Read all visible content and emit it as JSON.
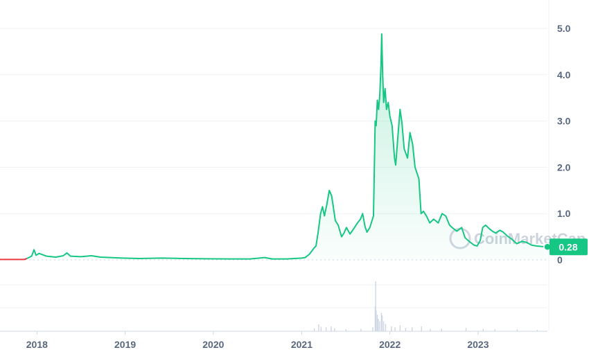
{
  "chart_data": {
    "type": "area",
    "title": "",
    "xlabel": "",
    "ylabel": "",
    "x_start": "2017-08-01",
    "x_end": "2023-10-15",
    "ylim": [
      0,
      5.5
    ],
    "y_ticks": [
      0,
      1.0,
      2.0,
      3.0,
      4.0,
      5.0
    ],
    "y_tick_labels": [
      "0",
      "1.0",
      "2.0",
      "3.0",
      "4.0",
      "5.0"
    ],
    "x_ticks": [
      "2018-01-01",
      "2019-01-01",
      "2020-01-01",
      "2021-01-01",
      "2022-01-01",
      "2023-01-01"
    ],
    "x_tick_labels": [
      "2018",
      "2019",
      "2020",
      "2021",
      "2022",
      "2023"
    ],
    "baseline_value": 0.0,
    "current_price": 0.28,
    "current_price_label": "0.28",
    "watermark": "CoinMarketCap",
    "colors": {
      "line_up": "#16c784",
      "line_down": "#ea3943",
      "area_fill": "#16c784",
      "price_label_bg": "#16c784",
      "grid": "#eff2f5",
      "volume": "#cfd6e4",
      "axis_text": "#58667e"
    },
    "series": [
      {
        "points": [
          [
            "2017-08-01",
            0.01
          ],
          [
            "2017-10-01",
            0.01
          ],
          [
            "2017-11-10",
            0.01
          ],
          [
            "2017-11-20",
            0.03
          ],
          [
            "2017-12-10",
            0.08
          ],
          [
            "2017-12-20",
            0.22
          ],
          [
            "2017-12-28",
            0.1
          ],
          [
            "2018-01-10",
            0.14
          ],
          [
            "2018-02-10",
            0.08
          ],
          [
            "2018-03-20",
            0.06
          ],
          [
            "2018-04-20",
            0.09
          ],
          [
            "2018-05-05",
            0.15
          ],
          [
            "2018-05-20",
            0.08
          ],
          [
            "2018-07-01",
            0.07
          ],
          [
            "2018-08-15",
            0.09
          ],
          [
            "2018-09-20",
            0.06
          ],
          [
            "2018-11-01",
            0.05
          ],
          [
            "2018-12-20",
            0.04
          ],
          [
            "2019-03-01",
            0.03
          ],
          [
            "2019-06-01",
            0.04
          ],
          [
            "2019-09-01",
            0.03
          ],
          [
            "2019-12-01",
            0.025
          ],
          [
            "2020-03-15",
            0.02
          ],
          [
            "2020-06-01",
            0.02
          ],
          [
            "2020-08-01",
            0.05
          ],
          [
            "2020-09-01",
            0.02
          ],
          [
            "2020-11-01",
            0.02
          ],
          [
            "2021-01-01",
            0.04
          ],
          [
            "2021-01-15",
            0.05
          ],
          [
            "2021-02-01",
            0.12
          ],
          [
            "2021-02-10",
            0.18
          ],
          [
            "2021-02-20",
            0.25
          ],
          [
            "2021-03-01",
            0.3
          ],
          [
            "2021-03-10",
            0.6
          ],
          [
            "2021-03-20",
            1.0
          ],
          [
            "2021-03-28",
            1.15
          ],
          [
            "2021-04-05",
            0.95
          ],
          [
            "2021-04-15",
            1.2
          ],
          [
            "2021-04-25",
            1.5
          ],
          [
            "2021-05-05",
            1.38
          ],
          [
            "2021-05-20",
            0.85
          ],
          [
            "2021-06-01",
            0.75
          ],
          [
            "2021-06-15",
            0.5
          ],
          [
            "2021-06-25",
            0.58
          ],
          [
            "2021-07-05",
            0.7
          ],
          [
            "2021-07-20",
            0.56
          ],
          [
            "2021-08-05",
            0.68
          ],
          [
            "2021-08-20",
            0.8
          ],
          [
            "2021-09-01",
            0.88
          ],
          [
            "2021-09-10",
            1.0
          ],
          [
            "2021-09-20",
            0.72
          ],
          [
            "2021-09-28",
            0.6
          ],
          [
            "2021-10-10",
            0.7
          ],
          [
            "2021-10-25",
            0.95
          ],
          [
            "2021-11-01",
            3.0
          ],
          [
            "2021-11-05",
            2.9
          ],
          [
            "2021-11-10",
            3.45
          ],
          [
            "2021-11-15",
            3.25
          ],
          [
            "2021-11-20",
            3.55
          ],
          [
            "2021-11-25",
            4.2
          ],
          [
            "2021-11-28",
            4.88
          ],
          [
            "2021-12-02",
            4.0
          ],
          [
            "2021-12-06",
            3.4
          ],
          [
            "2021-12-12",
            3.7
          ],
          [
            "2021-12-18",
            3.25
          ],
          [
            "2021-12-25",
            3.4
          ],
          [
            "2022-01-01",
            3.1
          ],
          [
            "2022-01-10",
            2.9
          ],
          [
            "2022-01-20",
            2.2
          ],
          [
            "2022-01-25",
            2.05
          ],
          [
            "2022-02-05",
            2.8
          ],
          [
            "2022-02-12",
            3.25
          ],
          [
            "2022-02-20",
            2.95
          ],
          [
            "2022-03-01",
            2.4
          ],
          [
            "2022-03-15",
            2.2
          ],
          [
            "2022-03-25",
            2.75
          ],
          [
            "2022-04-05",
            2.5
          ],
          [
            "2022-04-15",
            2.0
          ],
          [
            "2022-05-01",
            1.75
          ],
          [
            "2022-05-10",
            1.0
          ],
          [
            "2022-05-20",
            1.05
          ],
          [
            "2022-06-01",
            0.95
          ],
          [
            "2022-06-15",
            0.8
          ],
          [
            "2022-07-01",
            0.88
          ],
          [
            "2022-07-20",
            0.8
          ],
          [
            "2022-08-05",
            1.0
          ],
          [
            "2022-08-20",
            0.95
          ],
          [
            "2022-09-05",
            0.75
          ],
          [
            "2022-09-20",
            0.68
          ],
          [
            "2022-10-05",
            0.62
          ],
          [
            "2022-10-25",
            0.7
          ],
          [
            "2022-11-08",
            0.48
          ],
          [
            "2022-11-25",
            0.4
          ],
          [
            "2022-12-15",
            0.32
          ],
          [
            "2022-12-28",
            0.3
          ],
          [
            "2023-01-10",
            0.42
          ],
          [
            "2023-01-20",
            0.7
          ],
          [
            "2023-02-01",
            0.75
          ],
          [
            "2023-02-15",
            0.68
          ],
          [
            "2023-03-01",
            0.62
          ],
          [
            "2023-03-15",
            0.58
          ],
          [
            "2023-04-01",
            0.64
          ],
          [
            "2023-04-15",
            0.6
          ],
          [
            "2023-05-01",
            0.52
          ],
          [
            "2023-05-20",
            0.45
          ],
          [
            "2023-06-10",
            0.35
          ],
          [
            "2023-07-01",
            0.4
          ],
          [
            "2023-07-20",
            0.38
          ],
          [
            "2023-08-10",
            0.32
          ],
          [
            "2023-09-01",
            0.3
          ],
          [
            "2023-09-20",
            0.29
          ],
          [
            "2023-10-15",
            0.28
          ]
        ]
      }
    ],
    "volume": [
      [
        "2021-02-20",
        0.06
      ],
      [
        "2021-03-10",
        0.14
      ],
      [
        "2021-03-20",
        0.09
      ],
      [
        "2021-04-10",
        0.08
      ],
      [
        "2021-05-01",
        0.1
      ],
      [
        "2021-05-15",
        0.06
      ],
      [
        "2021-07-01",
        0.04
      ],
      [
        "2021-09-01",
        0.05
      ],
      [
        "2021-10-20",
        0.08
      ],
      [
        "2021-10-30",
        0.5
      ],
      [
        "2021-11-01",
        1.0
      ],
      [
        "2021-11-03",
        0.42
      ],
      [
        "2021-11-08",
        0.33
      ],
      [
        "2021-11-12",
        0.25
      ],
      [
        "2021-11-18",
        0.2
      ],
      [
        "2021-11-25",
        0.37
      ],
      [
        "2021-11-28",
        0.32
      ],
      [
        "2021-12-04",
        0.2
      ],
      [
        "2021-12-12",
        0.15
      ],
      [
        "2022-01-05",
        0.1
      ],
      [
        "2022-01-20",
        0.08
      ],
      [
        "2022-02-10",
        0.12
      ],
      [
        "2022-03-05",
        0.07
      ],
      [
        "2022-04-01",
        0.08
      ],
      [
        "2022-05-10",
        0.1
      ],
      [
        "2022-06-15",
        0.05
      ],
      [
        "2022-08-01",
        0.05
      ],
      [
        "2022-11-10",
        0.07
      ],
      [
        "2023-01-20",
        0.05
      ],
      [
        "2023-03-10",
        0.04
      ],
      [
        "2023-06-10",
        0.04
      ],
      [
        "2023-09-01",
        0.03
      ]
    ]
  }
}
